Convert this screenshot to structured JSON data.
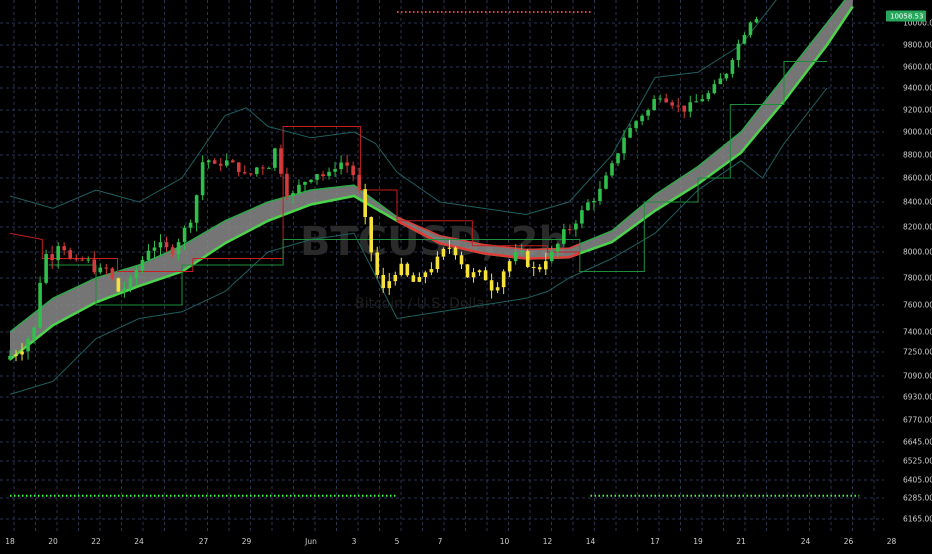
{
  "chart_data": {
    "type": "candlestick",
    "symbol_watermark": "BTCUSD, 2h",
    "watermark_sub": "Bitcoin / U.S. Dollar",
    "y_ticks": [
      10000,
      9800,
      9600,
      9400,
      9200,
      9000,
      8800,
      8600,
      8400,
      8200,
      8000,
      7800,
      7600,
      7400,
      7250,
      7090,
      6930,
      6770,
      6645,
      6525,
      6405,
      6285,
      6165
    ],
    "x_ticks": [
      {
        "label": "18",
        "day": 0
      },
      {
        "label": "20",
        "day": 2
      },
      {
        "label": "22",
        "day": 4
      },
      {
        "label": "24",
        "day": 6
      },
      {
        "label": "27",
        "day": 9
      },
      {
        "label": "29",
        "day": 11
      },
      {
        "label": "Jun",
        "day": 14
      },
      {
        "label": "3",
        "day": 16
      },
      {
        "label": "5",
        "day": 18
      },
      {
        "label": "7",
        "day": 20
      },
      {
        "label": "10",
        "day": 23
      },
      {
        "label": "12",
        "day": 25
      },
      {
        "label": "14",
        "day": 27
      },
      {
        "label": "17",
        "day": 30
      },
      {
        "label": "19",
        "day": 32
      },
      {
        "label": "21",
        "day": 34
      },
      {
        "label": "24",
        "day": 37
      },
      {
        "label": "26",
        "day": 39
      },
      {
        "label": "28",
        "day": 41
      }
    ],
    "last_price": "10058.53",
    "last_price_value": 10058.53,
    "path": [
      [
        0,
        7200
      ],
      [
        0.8,
        7270
      ],
      [
        1.5,
        7450
      ],
      [
        1.8,
        8000
      ],
      [
        2.2,
        7950
      ],
      [
        2.6,
        8100
      ],
      [
        3.2,
        7900
      ],
      [
        3.8,
        7950
      ],
      [
        4.3,
        7850
      ],
      [
        4.8,
        7870
      ],
      [
        5.3,
        7700
      ],
      [
        5.8,
        7750
      ],
      [
        6.3,
        7900
      ],
      [
        6.8,
        8050
      ],
      [
        7.3,
        8050
      ],
      [
        7.8,
        8000
      ],
      [
        8.3,
        8150
      ],
      [
        8.8,
        8300
      ],
      [
        9.3,
        8800
      ],
      [
        9.8,
        8700
      ],
      [
        10.3,
        8750
      ],
      [
        10.8,
        8700
      ],
      [
        11.3,
        8600
      ],
      [
        11.8,
        8700
      ],
      [
        12.3,
        8700
      ],
      [
        12.7,
        8900
      ],
      [
        13.0,
        8500
      ],
      [
        13.4,
        8450
      ],
      [
        13.8,
        8550
      ],
      [
        14.2,
        8600
      ],
      [
        14.6,
        8650
      ],
      [
        15.0,
        8600
      ],
      [
        15.4,
        8700
      ],
      [
        15.8,
        8750
      ],
      [
        16.2,
        8650
      ],
      [
        16.6,
        8450
      ],
      [
        16.9,
        8150
      ],
      [
        17.2,
        7900
      ],
      [
        17.6,
        7700
      ],
      [
        18.0,
        7800
      ],
      [
        18.4,
        7900
      ],
      [
        18.8,
        7800
      ],
      [
        19.2,
        7750
      ],
      [
        19.6,
        7850
      ],
      [
        20.0,
        7900
      ],
      [
        20.4,
        8000
      ],
      [
        20.8,
        8050
      ],
      [
        21.2,
        7950
      ],
      [
        21.6,
        7800
      ],
      [
        22.0,
        7850
      ],
      [
        22.4,
        7800
      ],
      [
        22.8,
        7700
      ],
      [
        23.2,
        7850
      ],
      [
        23.6,
        7950
      ],
      [
        24.0,
        8000
      ],
      [
        24.4,
        7900
      ],
      [
        24.8,
        7850
      ],
      [
        25.2,
        7950
      ],
      [
        25.6,
        8000
      ],
      [
        26.0,
        8150
      ],
      [
        26.4,
        8200
      ],
      [
        26.8,
        8300
      ],
      [
        27.2,
        8400
      ],
      [
        27.6,
        8450
      ],
      [
        28.0,
        8600
      ],
      [
        28.4,
        8750
      ],
      [
        28.8,
        8950
      ],
      [
        29.2,
        9050
      ],
      [
        29.6,
        9150
      ],
      [
        30.0,
        9200
      ],
      [
        30.4,
        9350
      ],
      [
        30.8,
        9300
      ],
      [
        31.2,
        9250
      ],
      [
        31.6,
        9200
      ],
      [
        32.0,
        9250
      ],
      [
        32.4,
        9300
      ],
      [
        32.8,
        9350
      ],
      [
        33.2,
        9450
      ],
      [
        33.6,
        9550
      ],
      [
        34.0,
        9750
      ],
      [
        34.4,
        9900
      ],
      [
        34.8,
        10058
      ]
    ],
    "ribbon_upper": [
      [
        0,
        7400
      ],
      [
        2,
        7650
      ],
      [
        4,
        7800
      ],
      [
        6,
        7900
      ],
      [
        8,
        8050
      ],
      [
        10,
        8250
      ],
      [
        12,
        8400
      ],
      [
        14,
        8500
      ],
      [
        16,
        8540
      ],
      [
        18,
        8280
      ],
      [
        20,
        8130
      ],
      [
        22,
        8060
      ],
      [
        24,
        8020
      ],
      [
        26,
        8030
      ],
      [
        28,
        8170
      ],
      [
        30,
        8460
      ],
      [
        32,
        8700
      ],
      [
        34,
        9000
      ],
      [
        36,
        9500
      ],
      [
        38,
        10000
      ],
      [
        39.2,
        10300
      ]
    ],
    "ribbon_lower": [
      [
        0,
        7200
      ],
      [
        2,
        7450
      ],
      [
        4,
        7620
      ],
      [
        6,
        7740
      ],
      [
        8,
        7850
      ],
      [
        10,
        8070
      ],
      [
        12,
        8250
      ],
      [
        14,
        8380
      ],
      [
        16,
        8450
      ],
      [
        18,
        8250
      ],
      [
        20,
        8070
      ],
      [
        22,
        7990
      ],
      [
        24,
        7950
      ],
      [
        26,
        7960
      ],
      [
        28,
        8080
      ],
      [
        30,
        8330
      ],
      [
        32,
        8550
      ],
      [
        34,
        8820
      ],
      [
        36,
        9280
      ],
      [
        38,
        9800
      ],
      [
        39.2,
        10150
      ]
    ],
    "red_segment": {
      "from_day": 18,
      "to_day": 26.5
    },
    "bb_upper": [
      [
        0,
        8450
      ],
      [
        2,
        8350
      ],
      [
        4,
        8500
      ],
      [
        6,
        8400
      ],
      [
        8,
        8600
      ],
      [
        10,
        9150
      ],
      [
        11,
        9220
      ],
      [
        12,
        9050
      ],
      [
        14,
        8950
      ],
      [
        16,
        9000
      ],
      [
        17,
        8900
      ],
      [
        18,
        8650
      ],
      [
        20,
        8400
      ],
      [
        22,
        8350
      ],
      [
        24,
        8300
      ],
      [
        26,
        8400
      ],
      [
        28,
        8800
      ],
      [
        30,
        9500
      ],
      [
        32,
        9550
      ],
      [
        34,
        9800
      ],
      [
        36,
        10300
      ],
      [
        38,
        10600
      ]
    ],
    "bb_lower": [
      [
        0,
        6950
      ],
      [
        2,
        7050
      ],
      [
        4,
        7350
      ],
      [
        6,
        7500
      ],
      [
        8,
        7550
      ],
      [
        10,
        7700
      ],
      [
        12,
        8000
      ],
      [
        14,
        8100
      ],
      [
        16,
        8150
      ],
      [
        18,
        7500
      ],
      [
        20,
        7550
      ],
      [
        22,
        7600
      ],
      [
        24,
        7650
      ],
      [
        25,
        7700
      ],
      [
        26,
        7800
      ],
      [
        28,
        7950
      ],
      [
        30,
        8150
      ],
      [
        32,
        8500
      ],
      [
        34,
        8750
      ],
      [
        35,
        8600
      ],
      [
        36,
        8900
      ],
      [
        38,
        9400
      ]
    ],
    "kijun_red": [
      [
        0,
        8150
      ],
      [
        1.5,
        8100
      ],
      [
        1.5,
        7950
      ],
      [
        5,
        7950
      ],
      [
        5,
        7850
      ],
      [
        8.5,
        7850
      ],
      [
        8.5,
        7950
      ],
      [
        12.7,
        7950
      ],
      [
        12.7,
        9050
      ],
      [
        16.3,
        9050
      ],
      [
        16.3,
        8500
      ],
      [
        18,
        8500
      ],
      [
        18,
        8250
      ],
      [
        21.5,
        8250
      ],
      [
        21.5,
        8050
      ],
      [
        25,
        8050
      ],
      [
        25,
        8000
      ],
      [
        26.5,
        8000
      ]
    ],
    "kijun_green": [
      [
        1.8,
        7900
      ],
      [
        4,
        7900
      ],
      [
        4,
        7600
      ],
      [
        8,
        7600
      ],
      [
        8,
        7900
      ],
      [
        12.7,
        7900
      ],
      [
        12.7,
        8100
      ],
      [
        13.5,
        8100
      ],
      [
        26.5,
        8100
      ],
      [
        26.5,
        7850
      ],
      [
        29.5,
        7850
      ],
      [
        29.5,
        8400
      ],
      [
        32,
        8400
      ],
      [
        32,
        8600
      ],
      [
        33.5,
        8600
      ],
      [
        33.5,
        9250
      ],
      [
        36,
        9250
      ],
      [
        36,
        9650
      ],
      [
        38,
        9650
      ]
    ],
    "dotted_top": {
      "from_day": 18,
      "to_day": 27,
      "value": 10100
    },
    "dotted_bottom": [
      {
        "from_day": 0,
        "to_day": 18,
        "value": 6300
      },
      {
        "from_day": 27,
        "to_day": 39.5,
        "value": 6300
      }
    ]
  }
}
